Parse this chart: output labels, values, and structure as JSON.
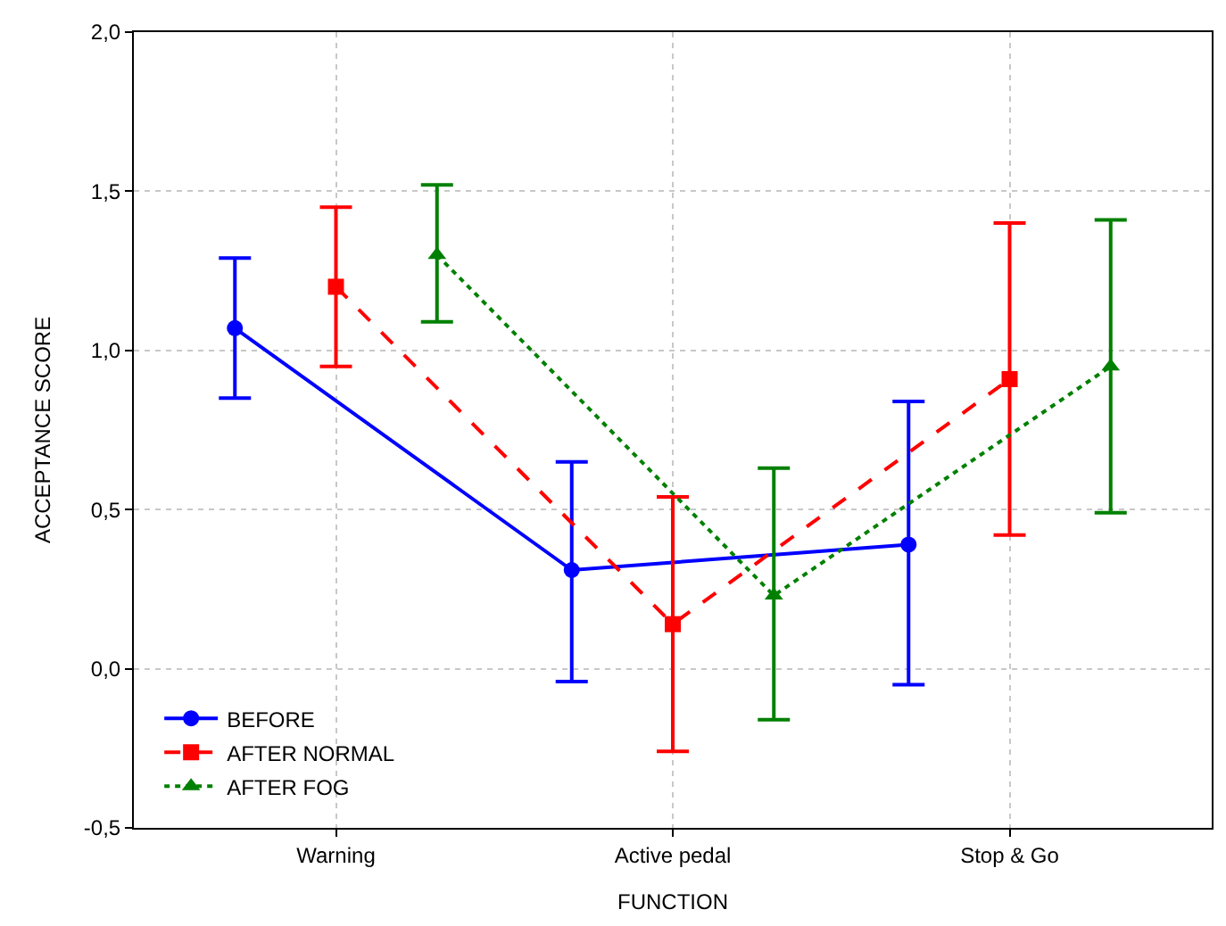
{
  "chart_data": {
    "type": "line",
    "xlabel": "FUNCTION",
    "ylabel": "ACCEPTANCE SCORE",
    "categories": [
      "Warning",
      "Active pedal",
      "Stop & Go"
    ],
    "series": [
      {
        "name": "BEFORE",
        "color": "#0000ff",
        "marker": "circle",
        "line_style": "solid",
        "values": [
          1.07,
          0.31,
          0.39
        ],
        "errors": [
          [
            0.85,
            1.29
          ],
          [
            -0.04,
            0.65
          ],
          [
            -0.05,
            0.84
          ]
        ]
      },
      {
        "name": "AFTER NORMAL",
        "color": "#ff0000",
        "marker": "square",
        "line_style": "dashed",
        "values": [
          1.2,
          0.14,
          0.91
        ],
        "errors": [
          [
            0.95,
            1.45
          ],
          [
            -0.26,
            0.54
          ],
          [
            0.42,
            1.4
          ]
        ]
      },
      {
        "name": "AFTER FOG",
        "color": "#008000",
        "marker": "triangle",
        "line_style": "dotted",
        "values": [
          1.3,
          0.23,
          0.95
        ],
        "errors": [
          [
            1.09,
            1.52
          ],
          [
            -0.16,
            0.63
          ],
          [
            0.49,
            1.41
          ]
        ]
      }
    ],
    "ylim": [
      -0.5,
      2.0
    ],
    "yticks": [
      {
        "value": -0.5,
        "label": "-0,5"
      },
      {
        "value": 0,
        "label": "0,0"
      },
      {
        "value": 0.5,
        "label": "0,5"
      },
      {
        "value": 1.0,
        "label": "1,0"
      },
      {
        "value": 1.5,
        "label": "1,5"
      },
      {
        "value": 2.0,
        "label": "2,0"
      }
    ],
    "grid": true,
    "legend": "bottom left"
  }
}
